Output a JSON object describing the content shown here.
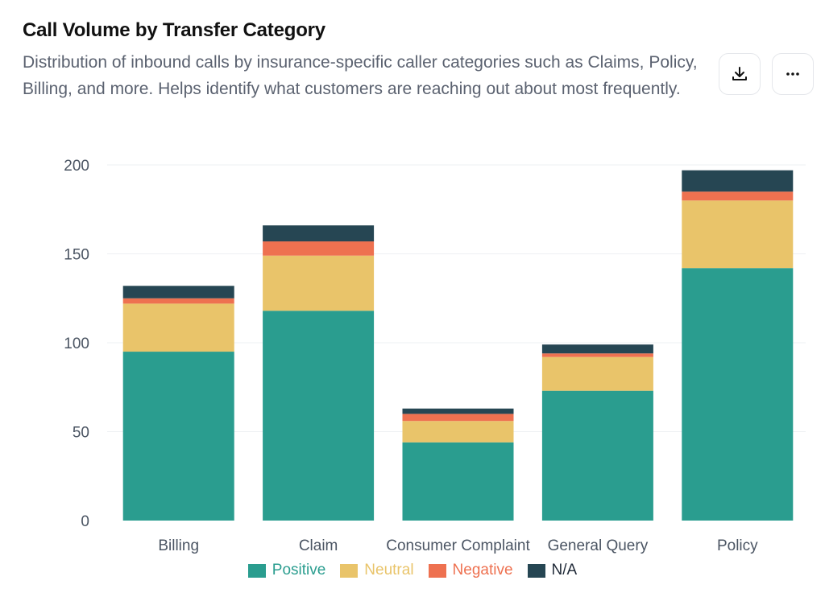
{
  "header": {
    "title": "Call Volume by Transfer Category",
    "subtitle": "Distribution of inbound calls by insurance-specific caller categories such as Claims, Policy, Billing, and more. Helps identify what customers are reaching out about most frequently."
  },
  "actions": {
    "download_icon": "download-icon",
    "more_icon": "more-horizontal-icon"
  },
  "colors": {
    "Positive": "#2a9d8f",
    "Neutral": "#e9c46a",
    "Negative": "#ee7150",
    "N/A": "#264653",
    "grid": "#eef0f3",
    "tick": "#4b5563"
  },
  "chart_data": {
    "type": "bar",
    "stacked": true,
    "categories": [
      "Billing",
      "Claim",
      "Consumer Complaint",
      "General Query",
      "Policy"
    ],
    "series": [
      {
        "name": "Positive",
        "values": [
          95,
          118,
          44,
          73,
          142
        ]
      },
      {
        "name": "Neutral",
        "values": [
          27,
          31,
          12,
          19,
          38
        ]
      },
      {
        "name": "Negative",
        "values": [
          3,
          8,
          4,
          2,
          5
        ]
      },
      {
        "name": "N/A",
        "values": [
          7,
          9,
          3,
          5,
          12
        ]
      }
    ],
    "yticks": [
      0,
      50,
      100,
      150,
      200
    ],
    "ylim": [
      0,
      200
    ],
    "grid": true,
    "legend_position": "bottom-center"
  }
}
